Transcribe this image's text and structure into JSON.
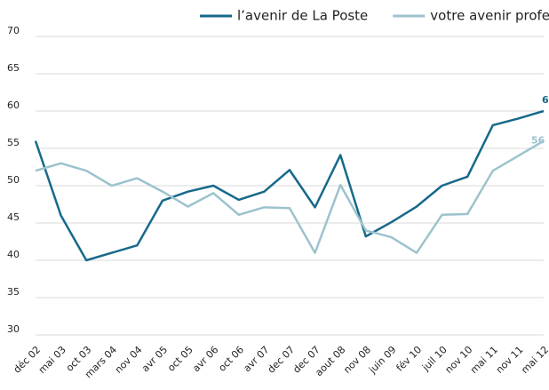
{
  "chart_data": {
    "type": "line",
    "categories": [
      "déc 02",
      "mai 03",
      "oct 03",
      "mars 04",
      "nov 04",
      "avr 05",
      "oct 05",
      "avr 06",
      "oct 06",
      "avr 07",
      "dec 07",
      "dec 07",
      "aout 08",
      "nov 08",
      "juin 09",
      "fév 10",
      "juil 10",
      "nov 10",
      "mai 11",
      "nov 11",
      "mai 12"
    ],
    "series": [
      {
        "name": "l’avenir de La Poste",
        "color": "#17698a",
        "values": [
          56,
          46,
          40,
          41,
          42,
          48,
          49.2,
          50,
          48.1,
          49.2,
          52.1,
          47.1,
          54.1,
          43.2,
          45.1,
          47.2,
          50,
          51.2,
          58.1,
          59,
          60
        ]
      },
      {
        "name": "votre avenir professionnel",
        "color": "#9cc3cd",
        "values": [
          52,
          53,
          52,
          50,
          51,
          49.2,
          47.2,
          49,
          46.1,
          47.1,
          47,
          41,
          50.1,
          44,
          43.1,
          41,
          46.1,
          46.2,
          52,
          54,
          56
        ]
      }
    ],
    "ylim": [
      30,
      70
    ],
    "yticks": [
      30,
      35,
      40,
      45,
      50,
      55,
      60,
      65,
      70
    ],
    "grid": true,
    "legend": "top"
  }
}
